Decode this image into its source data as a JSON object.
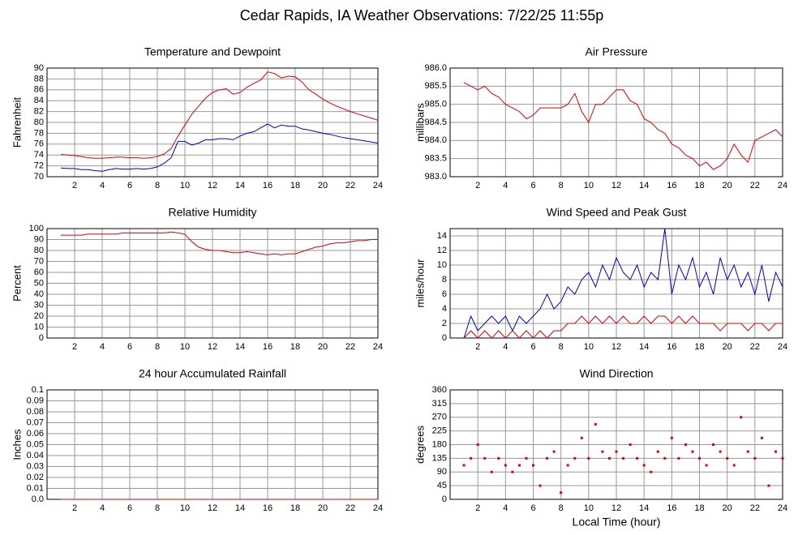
{
  "title": "Cedar Rapids, IA Weather Observations: 7/22/25 11:55p",
  "chart_data": [
    {
      "type": "line",
      "title": "Temperature and Dewpoint",
      "y_label": "Fahrenheit",
      "x": [
        1,
        1.5,
        2,
        2.5,
        3,
        3.5,
        4,
        4.5,
        5,
        5.5,
        6,
        6.5,
        7,
        7.5,
        8,
        8.5,
        9,
        9.5,
        10,
        10.5,
        11,
        11.5,
        12,
        12.5,
        13,
        13.5,
        14,
        14.5,
        15,
        15.5,
        16,
        16.5,
        17,
        17.5,
        18,
        18.5,
        19,
        19.5,
        20,
        20.5,
        21,
        21.5,
        22,
        22.5,
        23,
        23.5,
        24
      ],
      "series": [
        {
          "color": "#e00000",
          "values": [
            74.1,
            74.0,
            73.9,
            73.7,
            73.5,
            73.4,
            73.4,
            73.5,
            73.6,
            73.6,
            73.5,
            73.5,
            73.4,
            73.5,
            73.7,
            74.2,
            75.2,
            77.5,
            79.5,
            81.5,
            83,
            84.5,
            85.5,
            86,
            86.2,
            85.2,
            85.5,
            86.5,
            87.2,
            87.8,
            89.3,
            89,
            88.2,
            88.5,
            88.4,
            87.4,
            86,
            85.2,
            84.3,
            83.6,
            83,
            82.5,
            82,
            81.6,
            81.2,
            80.8,
            80.4
          ]
        },
        {
          "color": "#0000d0",
          "values": [
            71.6,
            71.5,
            71.5,
            71.3,
            71.3,
            71.1,
            71.0,
            71.3,
            71.5,
            71.4,
            71.4,
            71.5,
            71.4,
            71.5,
            71.8,
            72.5,
            73.5,
            76.5,
            76.5,
            75.8,
            76.2,
            76.8,
            76.8,
            77,
            77,
            76.8,
            77.5,
            78,
            78.3,
            79,
            79.7,
            79,
            79.5,
            79.3,
            79.3,
            78.8,
            78.6,
            78.3,
            78,
            77.8,
            77.5,
            77.2,
            77,
            76.8,
            76.6,
            76.4,
            76.2
          ]
        }
      ],
      "xlim": [
        0,
        24
      ],
      "xticks": [
        2,
        4,
        6,
        8,
        10,
        12,
        14,
        16,
        18,
        20,
        22,
        24
      ],
      "ylim": [
        70,
        90
      ],
      "yticks": [
        70,
        72,
        74,
        76,
        78,
        80,
        82,
        84,
        86,
        88,
        90
      ],
      "grid": true
    },
    {
      "type": "line",
      "title": "Air Pressure",
      "y_label": "millibars",
      "x": [
        1,
        1.5,
        2,
        2.5,
        3,
        3.5,
        4,
        4.5,
        5,
        5.5,
        6,
        6.5,
        7,
        7.5,
        8,
        8.5,
        9,
        9.5,
        10,
        10.5,
        11,
        11.5,
        12,
        12.5,
        13,
        13.5,
        14,
        14.5,
        15,
        15.5,
        16,
        16.5,
        17,
        17.5,
        18,
        18.5,
        19,
        19.5,
        20,
        20.5,
        21,
        21.5,
        22,
        22.5,
        23,
        23.5,
        24
      ],
      "series": [
        {
          "color": "#e00000",
          "values": [
            985.6,
            985.5,
            985.4,
            985.5,
            985.3,
            985.2,
            985.0,
            984.9,
            984.8,
            984.6,
            984.7,
            984.9,
            984.9,
            984.9,
            984.9,
            985.0,
            985.3,
            984.8,
            984.5,
            985.0,
            985.0,
            985.2,
            985.4,
            985.4,
            985.1,
            985.0,
            984.6,
            984.5,
            984.3,
            984.2,
            983.9,
            983.8,
            983.6,
            983.5,
            983.3,
            983.4,
            983.2,
            983.3,
            983.5,
            983.9,
            983.6,
            983.4,
            984.0,
            984.1,
            984.2,
            984.3,
            984.1
          ]
        }
      ],
      "xlim": [
        0,
        24
      ],
      "xticks": [
        2,
        4,
        6,
        8,
        10,
        12,
        14,
        16,
        18,
        20,
        22,
        24
      ],
      "ylim": [
        983,
        986
      ],
      "yticks": [
        {
          "value": 983,
          "label": "983.0"
        },
        983.5,
        {
          "value": 984,
          "label": "984.0"
        },
        984.5,
        {
          "value": 985,
          "label": "985.0"
        },
        985.5,
        {
          "value": 986,
          "label": "986.0"
        }
      ],
      "grid": true
    },
    {
      "type": "line",
      "title": "Relative Humidity",
      "y_label": "Percent",
      "x": [
        1,
        1.5,
        2,
        2.5,
        3,
        3.5,
        4,
        4.5,
        5,
        5.5,
        6,
        6.5,
        7,
        7.5,
        8,
        8.5,
        9,
        9.5,
        10,
        10.5,
        11,
        11.5,
        12,
        12.5,
        13,
        13.5,
        14,
        14.5,
        15,
        15.5,
        16,
        16.5,
        17,
        17.5,
        18,
        18.5,
        19,
        19.5,
        20,
        20.5,
        21,
        21.5,
        22,
        22.5,
        23,
        23.5,
        24
      ],
      "series": [
        {
          "color": "#e00000",
          "values": [
            94,
            94,
            94,
            94,
            95,
            95,
            95,
            95,
            95,
            96,
            96,
            96,
            96,
            96,
            96,
            96,
            97,
            96,
            95,
            88,
            83,
            81,
            80,
            80,
            79,
            78,
            78,
            79,
            78,
            77,
            76,
            77,
            76,
            77,
            77,
            79,
            81,
            83,
            84,
            86,
            87,
            87,
            88,
            89,
            89,
            90,
            90
          ]
        }
      ],
      "xlim": [
        0,
        24
      ],
      "xticks": [
        2,
        4,
        6,
        8,
        10,
        12,
        14,
        16,
        18,
        20,
        22,
        24
      ],
      "ylim": [
        0,
        100
      ],
      "yticks": [
        0,
        10,
        20,
        30,
        40,
        50,
        60,
        70,
        80,
        90,
        100
      ],
      "grid": true
    },
    {
      "type": "line",
      "title": "Wind Speed and Peak Gust",
      "y_label": "miles/hour",
      "x": [
        1,
        1.5,
        2,
        2.5,
        3,
        3.5,
        4,
        4.5,
        5,
        5.5,
        6,
        6.5,
        7,
        7.5,
        8,
        8.5,
        9,
        9.5,
        10,
        10.5,
        11,
        11.5,
        12,
        12.5,
        13,
        13.5,
        14,
        14.5,
        15,
        15.5,
        16,
        16.5,
        17,
        17.5,
        18,
        18.5,
        19,
        19.5,
        20,
        20.5,
        21,
        21.5,
        22,
        22.5,
        23,
        23.5,
        24
      ],
      "series": [
        {
          "color": "#0000d0",
          "values": [
            0,
            3,
            1,
            2,
            3,
            2,
            3,
            1,
            3,
            2,
            3,
            4,
            6,
            4,
            5,
            7,
            6,
            8,
            9,
            7,
            10,
            8,
            11,
            9,
            8,
            10,
            7,
            9,
            8,
            15,
            6,
            10,
            8,
            11,
            7,
            9,
            6,
            11,
            8,
            10,
            7,
            9,
            6,
            10,
            5,
            9,
            7
          ]
        },
        {
          "color": "#e00000",
          "values": [
            0,
            1,
            0,
            1,
            0,
            1,
            0,
            1,
            0,
            1,
            0,
            1,
            0,
            1,
            1,
            2,
            2,
            3,
            2,
            3,
            2,
            3,
            2,
            3,
            2,
            2,
            3,
            2,
            3,
            3,
            2,
            3,
            2,
            3,
            2,
            2,
            2,
            1,
            2,
            2,
            2,
            1,
            2,
            2,
            1,
            2,
            2
          ]
        }
      ],
      "xlim": [
        0,
        24
      ],
      "xticks": [
        2,
        4,
        6,
        8,
        10,
        12,
        14,
        16,
        18,
        20,
        22,
        24
      ],
      "ylim": [
        0,
        15
      ],
      "yticks": [
        0,
        2,
        4,
        6,
        8,
        10,
        12,
        14
      ],
      "grid": true
    },
    {
      "type": "line",
      "title": "24 hour Accumulated Rainfall",
      "y_label": "Inches",
      "x": [
        1,
        24
      ],
      "series": [
        {
          "color": "#e00000",
          "values": [
            0,
            0
          ]
        }
      ],
      "xlim": [
        0,
        24
      ],
      "xticks": [
        2,
        4,
        6,
        8,
        10,
        12,
        14,
        16,
        18,
        20,
        22,
        24
      ],
      "ylim": [
        0,
        0.1
      ],
      "yticks": [
        {
          "value": 0,
          "label": "0.0"
        },
        0.01,
        0.02,
        0.03,
        0.04,
        0.05,
        0.06,
        0.07,
        0.08,
        0.09,
        0.1
      ],
      "grid": true
    },
    {
      "type": "scatter",
      "title": "Wind Direction",
      "y_label": "degrees",
      "x_label": "Local Time (hour)",
      "x": [
        1,
        1.5,
        2,
        2.5,
        3,
        3.5,
        4,
        4.5,
        5,
        5.5,
        6,
        6.5,
        7,
        7.5,
        8,
        8.5,
        9,
        9.5,
        10,
        10.5,
        11,
        11.5,
        12,
        12.5,
        13,
        13.5,
        14,
        14.5,
        15,
        15.5,
        16,
        16.5,
        17,
        17.5,
        18,
        18.5,
        19,
        19.5,
        20,
        20.5,
        21,
        21.5,
        22,
        22.5,
        23,
        23.5,
        24
      ],
      "series": [
        {
          "color": "#e00000",
          "values": [
            112,
            135,
            180,
            135,
            90,
            135,
            112,
            90,
            112,
            135,
            112,
            45,
            135,
            157,
            22,
            112,
            135,
            202,
            135,
            247,
            157,
            135,
            157,
            135,
            180,
            135,
            112,
            90,
            157,
            135,
            202,
            135,
            180,
            157,
            135,
            112,
            180,
            157,
            135,
            112,
            270,
            157,
            135,
            202,
            45,
            157,
            135
          ]
        }
      ],
      "xlim": [
        0,
        24
      ],
      "xticks": [
        2,
        4,
        6,
        8,
        10,
        12,
        14,
        16,
        18,
        20,
        22,
        24
      ],
      "ylim": [
        0,
        360
      ],
      "yticks": [
        0,
        45,
        90,
        135,
        180,
        225,
        270,
        315,
        360
      ],
      "grid": true
    }
  ]
}
